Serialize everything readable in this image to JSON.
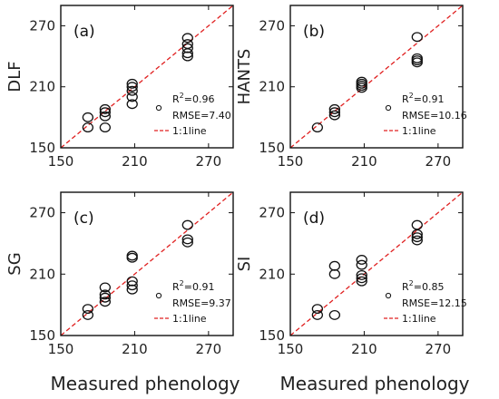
{
  "xlabel": "Measured phenology",
  "chart_data": [
    {
      "type": "scatter",
      "panel_label": "(a)",
      "ylabel": "DLF",
      "xlim": [
        150,
        290
      ],
      "ylim": [
        150,
        290
      ],
      "xticks": [
        150,
        210,
        270
      ],
      "yticks": [
        150,
        210,
        270
      ],
      "r2_prefix": "R",
      "r2_value": "=0.96",
      "rmse": "RMSE=7.40",
      "line_label": "1:1line",
      "points": [
        {
          "x": 172,
          "y": 170
        },
        {
          "x": 172,
          "y": 180
        },
        {
          "x": 186,
          "y": 170
        },
        {
          "x": 186,
          "y": 181
        },
        {
          "x": 186,
          "y": 185
        },
        {
          "x": 186,
          "y": 188
        },
        {
          "x": 208,
          "y": 193
        },
        {
          "x": 208,
          "y": 200
        },
        {
          "x": 208,
          "y": 206
        },
        {
          "x": 208,
          "y": 210
        },
        {
          "x": 208,
          "y": 213
        },
        {
          "x": 253,
          "y": 240
        },
        {
          "x": 253,
          "y": 243
        },
        {
          "x": 253,
          "y": 248
        },
        {
          "x": 253,
          "y": 252
        },
        {
          "x": 253,
          "y": 258
        }
      ]
    },
    {
      "type": "scatter",
      "panel_label": "(b)",
      "ylabel": "HANTS",
      "xlim": [
        150,
        290
      ],
      "ylim": [
        150,
        290
      ],
      "xticks": [
        150,
        210,
        270
      ],
      "yticks": [
        150,
        210,
        270
      ],
      "r2_prefix": "R",
      "r2_value": "=0.91",
      "rmse": "RMSE=10.16",
      "line_label": "1:1line",
      "points": [
        {
          "x": 172,
          "y": 170
        },
        {
          "x": 186,
          "y": 182
        },
        {
          "x": 186,
          "y": 185
        },
        {
          "x": 186,
          "y": 188
        },
        {
          "x": 208,
          "y": 209
        },
        {
          "x": 208,
          "y": 211
        },
        {
          "x": 208,
          "y": 213
        },
        {
          "x": 208,
          "y": 215
        },
        {
          "x": 253,
          "y": 234
        },
        {
          "x": 253,
          "y": 236
        },
        {
          "x": 253,
          "y": 238
        },
        {
          "x": 253,
          "y": 259
        }
      ]
    },
    {
      "type": "scatter",
      "panel_label": "(c)",
      "ylabel": "SG",
      "xlim": [
        150,
        290
      ],
      "ylim": [
        150,
        290
      ],
      "xticks": [
        150,
        210,
        270
      ],
      "yticks": [
        150,
        210,
        270
      ],
      "r2_prefix": "R",
      "r2_value": "=0.91",
      "rmse": "RMSE=9.37",
      "line_label": "1:1line",
      "points": [
        {
          "x": 172,
          "y": 170
        },
        {
          "x": 172,
          "y": 176
        },
        {
          "x": 186,
          "y": 183
        },
        {
          "x": 186,
          "y": 187
        },
        {
          "x": 186,
          "y": 190
        },
        {
          "x": 186,
          "y": 197
        },
        {
          "x": 208,
          "y": 195
        },
        {
          "x": 208,
          "y": 199
        },
        {
          "x": 208,
          "y": 203
        },
        {
          "x": 208,
          "y": 226
        },
        {
          "x": 208,
          "y": 228
        },
        {
          "x": 253,
          "y": 241
        },
        {
          "x": 253,
          "y": 244
        },
        {
          "x": 253,
          "y": 258
        }
      ]
    },
    {
      "type": "scatter",
      "panel_label": "(d)",
      "ylabel": "SI",
      "xlim": [
        150,
        290
      ],
      "ylim": [
        150,
        290
      ],
      "xticks": [
        150,
        210,
        270
      ],
      "yticks": [
        150,
        210,
        270
      ],
      "r2_prefix": "R",
      "r2_value": "=0.85",
      "rmse": "RMSE=12.15",
      "line_label": "1:1line",
      "points": [
        {
          "x": 172,
          "y": 170
        },
        {
          "x": 172,
          "y": 176
        },
        {
          "x": 186,
          "y": 170
        },
        {
          "x": 186,
          "y": 210
        },
        {
          "x": 186,
          "y": 218
        },
        {
          "x": 208,
          "y": 203
        },
        {
          "x": 208,
          "y": 206
        },
        {
          "x": 208,
          "y": 209
        },
        {
          "x": 208,
          "y": 219
        },
        {
          "x": 208,
          "y": 224
        },
        {
          "x": 253,
          "y": 243
        },
        {
          "x": 253,
          "y": 246
        },
        {
          "x": 253,
          "y": 249
        },
        {
          "x": 253,
          "y": 258
        }
      ]
    }
  ]
}
